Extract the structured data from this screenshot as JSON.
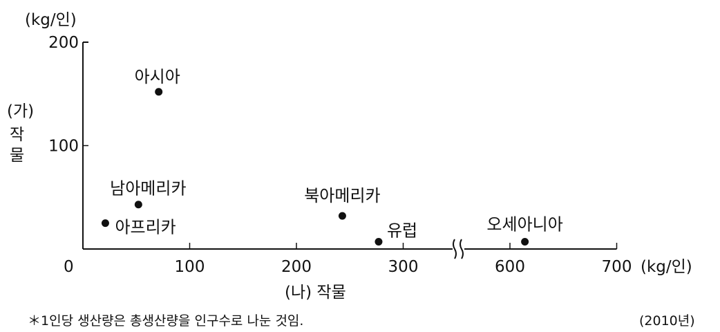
{
  "chart_data": {
    "type": "scatter",
    "ylabel_unit": "(kg/인)",
    "ylabel_lines": [
      "(가)",
      "작",
      "물"
    ],
    "xlabel": "(나) 작물",
    "xlabel_unit": "(kg/인)",
    "x_ticks": [
      0,
      100,
      200,
      300,
      600,
      700
    ],
    "y_ticks": [
      100,
      200
    ],
    "y_zero_label": "0",
    "xlim": [
      0,
      700
    ],
    "x_axis_break": [
      350,
      550
    ],
    "ylim": [
      0,
      200
    ],
    "grid": false,
    "points": [
      {
        "label": "아시아",
        "x": 71,
        "y": 152
      },
      {
        "label": "남아메리카",
        "x": 52,
        "y": 43
      },
      {
        "label": "아프리카",
        "x": 21,
        "y": 25
      },
      {
        "label": "북아메리카",
        "x": 243,
        "y": 32
      },
      {
        "label": "유럽",
        "x": 277,
        "y": 7
      },
      {
        "label": "오세아니아",
        "x": 614,
        "y": 7
      }
    ],
    "footnote": "＊1인당 생산량은 총생산량을 인구수로 나눈 것임.",
    "year_note": "(2010년)"
  }
}
